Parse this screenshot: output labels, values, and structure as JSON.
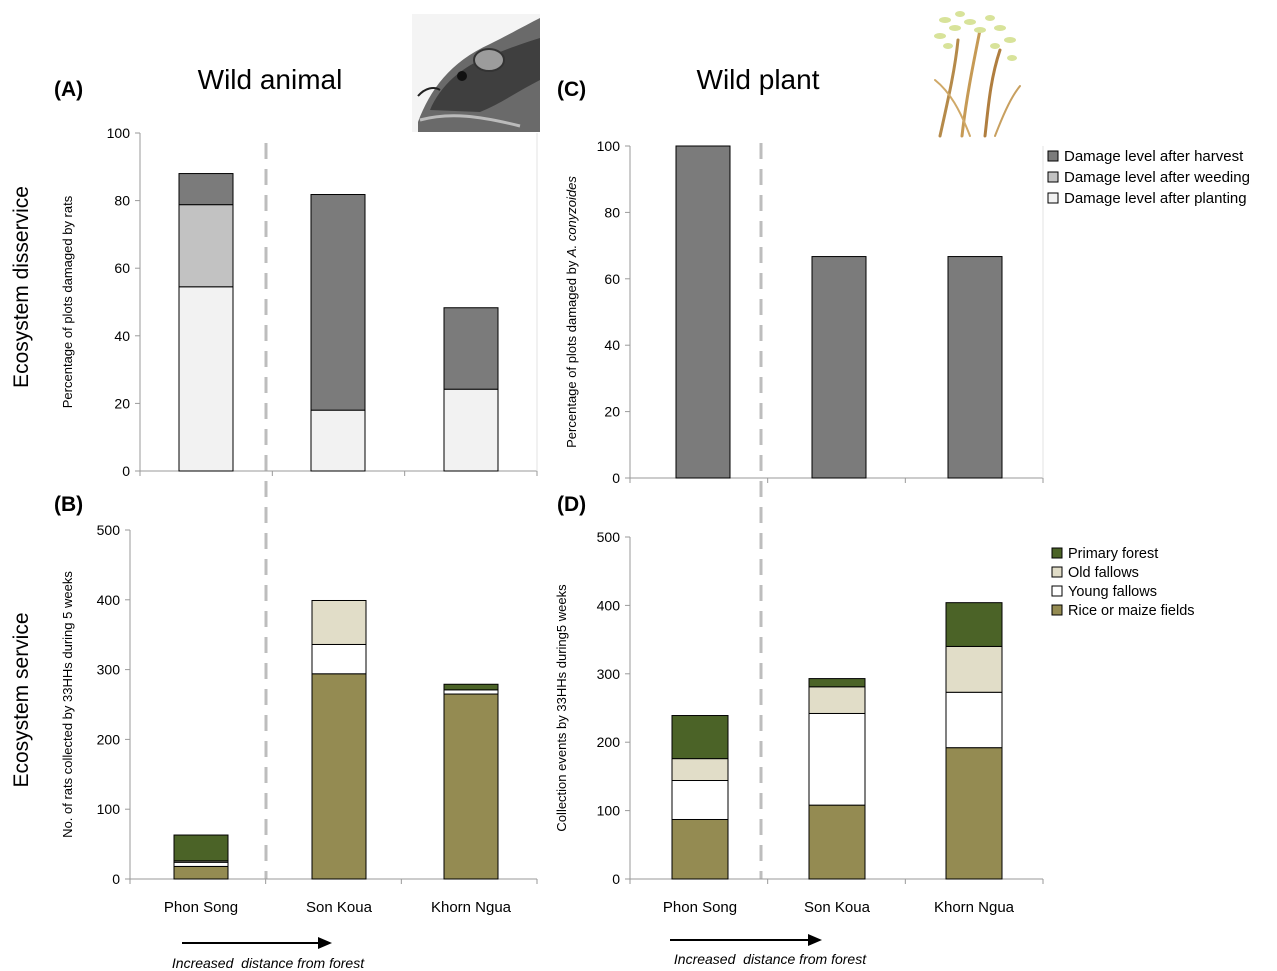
{
  "row_labels": {
    "top": "Ecosystem disservice",
    "bottom": "Ecosystem service"
  },
  "column_titles": {
    "left": "Wild animal",
    "right": "Wild plant"
  },
  "arrow_caption": "Increased  distance from forest",
  "legend_damage": [
    "Damage level after harvest",
    "Damage level after weeding",
    "Damage level after planting"
  ],
  "legend_habitat": [
    "Primary forest",
    "Old fallows",
    "Young fallows",
    "Rice or maize fields"
  ],
  "colors": {
    "harvest": "#7b7b7b",
    "weeding": "#c2c2c2",
    "planting": "#f2f2f2",
    "primary_forest": "#4b6327",
    "old_fallows": "#e1ddc8",
    "young_fallows": "#ffffff",
    "rice_maize": "#948b52",
    "divider": "#bdbdbd",
    "axis": "#9a9a9a"
  },
  "chart_data": [
    {
      "panel": "(A)",
      "type": "bar",
      "stacked": true,
      "categories": [
        "Phon Song",
        "Son Koua",
        "Khorn Ngua"
      ],
      "series": [
        {
          "name": "Damage level after planting",
          "values": [
            54.5,
            18,
            24.2
          ]
        },
        {
          "name": "Damage level after weeding",
          "values": [
            24.3,
            0,
            0
          ]
        },
        {
          "name": "Damage level after harvest",
          "values": [
            9.2,
            63.8,
            24.1
          ]
        }
      ],
      "ylabel": "Percentage of plots damaged by rats",
      "ylim": [
        0,
        100
      ],
      "yticks": [
        0,
        20,
        40,
        60,
        80,
        100
      ],
      "show_category_labels": false
    },
    {
      "panel": "(B)",
      "type": "bar",
      "stacked": true,
      "categories": [
        "Phon Song",
        "Son Koua",
        "Khorn Ngua"
      ],
      "series": [
        {
          "name": "Rice or maize fields",
          "values": [
            18,
            294,
            265
          ]
        },
        {
          "name": "Young fallows",
          "values": [
            6,
            42,
            6
          ]
        },
        {
          "name": "Old fallows",
          "values": [
            2,
            63,
            0
          ]
        },
        {
          "name": "Primary forest",
          "values": [
            37,
            0,
            8
          ]
        }
      ],
      "ylabel": "No. of  rats collected by 33HHs during 5 weeks",
      "ylim": [
        0,
        500
      ],
      "yticks": [
        0,
        100,
        200,
        300,
        400,
        500
      ],
      "show_category_labels": true
    },
    {
      "panel": "(C)",
      "type": "bar",
      "stacked": true,
      "categories": [
        "Phon Song",
        "Son Koua",
        "Khorn Ngua"
      ],
      "series": [
        {
          "name": "Damage level after harvest",
          "values": [
            100,
            66.7,
            66.7
          ]
        }
      ],
      "ylabel_prefix": "Percentage of plots damaged by ",
      "ylabel_italic": "A. conyzoides",
      "ylim": [
        0,
        100
      ],
      "yticks": [
        0,
        20,
        40,
        60,
        80,
        100
      ],
      "show_category_labels": false
    },
    {
      "panel": "(D)",
      "type": "bar",
      "stacked": true,
      "categories": [
        "Phon Song",
        "Son Koua",
        "Khorn Ngua"
      ],
      "series": [
        {
          "name": "Rice or maize fields",
          "values": [
            87,
            108,
            192
          ]
        },
        {
          "name": "Young fallows",
          "values": [
            57,
            134,
            81
          ]
        },
        {
          "name": "Old fallows",
          "values": [
            32,
            39,
            67
          ]
        },
        {
          "name": "Primary forest",
          "values": [
            63,
            12,
            64
          ]
        }
      ],
      "ylabel": "Collection events by 33HHs during5 weeks",
      "ylim": [
        0,
        500
      ],
      "yticks": [
        0,
        100,
        200,
        300,
        400,
        500
      ],
      "show_category_labels": true
    }
  ]
}
